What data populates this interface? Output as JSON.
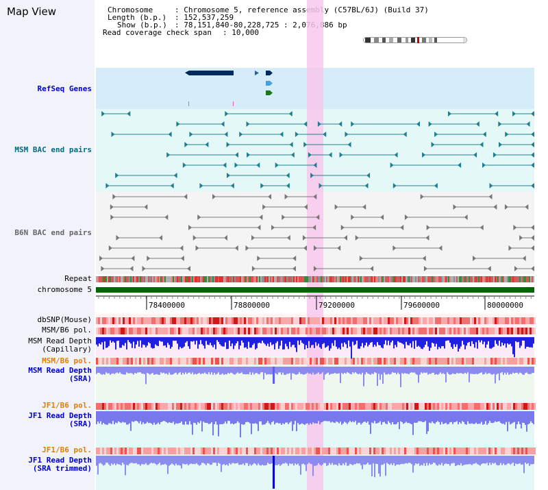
{
  "window": {
    "title": "Map View"
  },
  "header": {
    "chromosome_label": "Chromosome",
    "chromosome_value": ": Chromosome 5, reference assembly (C57BL/6J) (Build 37)",
    "length_label": "Length (b.p.)",
    "length_value": ": 152,537,259",
    "show_label": "Show (b.p.)",
    "show_value": ": 78,151,840-80,228,725 : 2,076,886 bp",
    "read_coverage_label": "Read coverage check span",
    "read_coverage_value": ": 10,000"
  },
  "tracks": {
    "refseq": {
      "label": "RefSeq Genes",
      "color": "#0000cc"
    },
    "msm_bac": {
      "label": "MSM BAC end pairs",
      "color": "#006b80"
    },
    "b6n_bac": {
      "label": "B6N BAC end pairs",
      "color": "#666666"
    },
    "repeat": {
      "label": "Repeat"
    },
    "chromosome": {
      "label": "chromosome 5"
    },
    "dbsnp": {
      "label": "dbSNP(Mouse)"
    },
    "msm_b6_pol_1": {
      "label": "MSM/B6 pol."
    },
    "msm_read_depth_cap": {
      "label": "MSM Read Depth\n(Capillary)"
    },
    "msm_b6_pol_2": {
      "label": "MSM/B6 pol.",
      "color": "#e08000"
    },
    "msm_read_depth_sra": {
      "label": "MSM Read Depth\n(SRA)",
      "color": "#0000cc"
    },
    "jf1_b6_pol_1": {
      "label": "JF1/B6 pol.",
      "color": "#e08000"
    },
    "jf1_read_depth_sra": {
      "label": "JF1 Read Depth\n(SRA)",
      "color": "#0000cc"
    },
    "jf1_b6_pol_2": {
      "label": "JF1/B6 pol.",
      "color": "#e08000"
    },
    "jf1_read_depth_trim": {
      "label": "JF1 Read Depth\n(SRA trimmed)",
      "color": "#0000cc"
    }
  },
  "axis": {
    "ticks": [
      "78400000",
      "78800000",
      "79200000",
      "79600000",
      "80000000"
    ]
  },
  "colors": {
    "highlight": "#f8c8ec",
    "refseq_bg": "#d6ecf8",
    "msm_bg": "#e4f8f8",
    "b6n_bg": "#f4f4f4",
    "chromosome": "#006600",
    "gene": "#002a5c"
  }
}
